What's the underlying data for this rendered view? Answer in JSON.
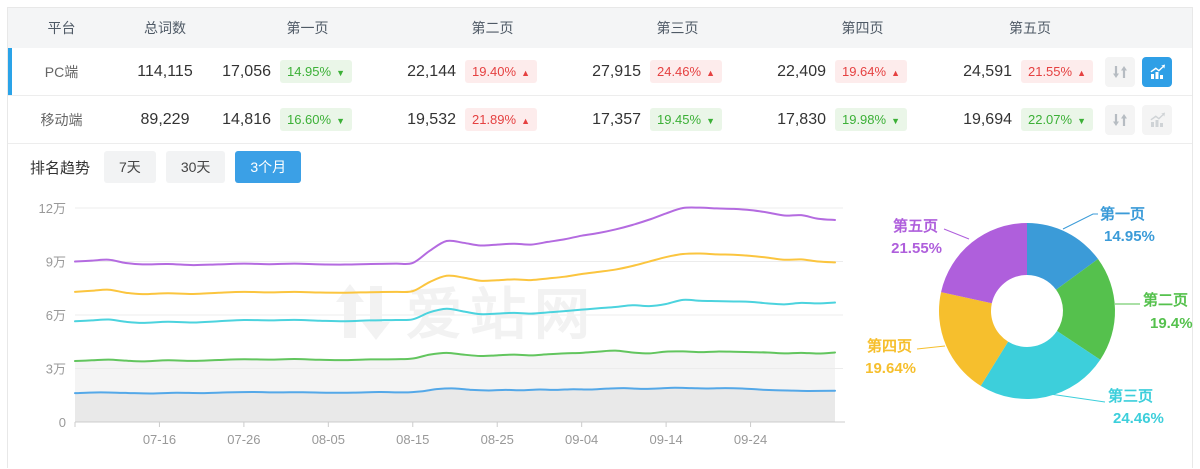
{
  "table": {
    "headers": [
      "平台",
      "总词数",
      "第一页",
      "第二页",
      "第三页",
      "第四页",
      "第五页"
    ],
    "rows": [
      {
        "platform": "PC端",
        "total": "114,115",
        "chart_active": true,
        "pages": [
          {
            "count": "17,056",
            "pct": "14.95%",
            "dir": "down"
          },
          {
            "count": "22,144",
            "pct": "19.40%",
            "dir": "up"
          },
          {
            "count": "27,915",
            "pct": "24.46%",
            "dir": "up"
          },
          {
            "count": "22,409",
            "pct": "19.64%",
            "dir": "up"
          },
          {
            "count": "24,591",
            "pct": "21.55%",
            "dir": "up"
          }
        ]
      },
      {
        "platform": "移动端",
        "total": "89,229",
        "chart_active": false,
        "pages": [
          {
            "count": "14,816",
            "pct": "16.60%",
            "dir": "down"
          },
          {
            "count": "19,532",
            "pct": "21.89%",
            "dir": "up"
          },
          {
            "count": "17,357",
            "pct": "19.45%",
            "dir": "down"
          },
          {
            "count": "17,830",
            "pct": "19.98%",
            "dir": "down"
          },
          {
            "count": "19,694",
            "pct": "22.07%",
            "dir": "down"
          }
        ]
      }
    ]
  },
  "trend": {
    "label": "排名趋势",
    "tabs": [
      {
        "label": "7天",
        "active": false
      },
      {
        "label": "30天",
        "active": false
      },
      {
        "label": "3个月",
        "active": true
      }
    ]
  },
  "watermark": "爱站网",
  "colors": {
    "accent_blue": "#2f9fe6",
    "up_red": "#e54141",
    "down_green": "#3cb037",
    "selected_row_bar": "#2aa3e8"
  },
  "chart_data": [
    {
      "type": "line",
      "title": "排名趋势（3个月）",
      "x_ticks": [
        "07-16",
        "07-26",
        "08-05",
        "08-15",
        "08-25",
        "09-04",
        "09-14",
        "09-24"
      ],
      "x_tick_days": [
        10,
        20,
        30,
        40,
        50,
        60,
        70,
        80
      ],
      "x_range_days": [
        0,
        90
      ],
      "y_ticks": [
        {
          "label": "0",
          "value": 0
        },
        {
          "label": "3万",
          "value": 3
        },
        {
          "label": "6万",
          "value": 6
        },
        {
          "label": "9万",
          "value": 9
        },
        {
          "label": "12万",
          "value": 12
        }
      ],
      "values_unit": "万",
      "ylim": [
        0,
        12.6
      ],
      "grid": true,
      "legend": "none",
      "series": [
        {
          "name": "purple",
          "color": "#b46be0",
          "fill": false,
          "points": [
            [
              0,
              9.0
            ],
            [
              2,
              9.05
            ],
            [
              4,
              9.1
            ],
            [
              6,
              8.92
            ],
            [
              8,
              8.84
            ],
            [
              11,
              8.86
            ],
            [
              14,
              8.8
            ],
            [
              17,
              8.84
            ],
            [
              20,
              8.88
            ],
            [
              23,
              8.85
            ],
            [
              26,
              8.88
            ],
            [
              29,
              8.84
            ],
            [
              32,
              8.83
            ],
            [
              35,
              8.86
            ],
            [
              38,
              8.88
            ],
            [
              40,
              8.92
            ],
            [
              42,
              9.6
            ],
            [
              44,
              10.15
            ],
            [
              46,
              10.05
            ],
            [
              48,
              9.9
            ],
            [
              50,
              9.95
            ],
            [
              52,
              10.0
            ],
            [
              54,
              9.95
            ],
            [
              56,
              10.1
            ],
            [
              58,
              10.25
            ],
            [
              60,
              10.45
            ],
            [
              62,
              10.6
            ],
            [
              64,
              10.8
            ],
            [
              66,
              11.05
            ],
            [
              68,
              11.35
            ],
            [
              70,
              11.7
            ],
            [
              72,
              12.0
            ],
            [
              74,
              12.02
            ],
            [
              76,
              11.98
            ],
            [
              78,
              11.95
            ],
            [
              80,
              11.88
            ],
            [
              82,
              11.75
            ],
            [
              84,
              11.58
            ],
            [
              86,
              11.6
            ],
            [
              88,
              11.4
            ],
            [
              90,
              11.33
            ]
          ]
        },
        {
          "name": "yellow",
          "color": "#fbc53f",
          "fill": false,
          "points": [
            [
              0,
              7.3
            ],
            [
              2,
              7.36
            ],
            [
              4,
              7.42
            ],
            [
              6,
              7.25
            ],
            [
              8,
              7.17
            ],
            [
              11,
              7.22
            ],
            [
              14,
              7.18
            ],
            [
              17,
              7.25
            ],
            [
              20,
              7.3
            ],
            [
              23,
              7.27
            ],
            [
              26,
              7.3
            ],
            [
              29,
              7.26
            ],
            [
              32,
              7.25
            ],
            [
              35,
              7.28
            ],
            [
              38,
              7.3
            ],
            [
              40,
              7.34
            ],
            [
              42,
              7.85
            ],
            [
              44,
              8.2
            ],
            [
              46,
              8.1
            ],
            [
              48,
              7.92
            ],
            [
              50,
              7.95
            ],
            [
              52,
              8.0
            ],
            [
              54,
              7.96
            ],
            [
              56,
              8.05
            ],
            [
              58,
              8.15
            ],
            [
              60,
              8.3
            ],
            [
              62,
              8.42
            ],
            [
              64,
              8.55
            ],
            [
              66,
              8.75
            ],
            [
              68,
              9.0
            ],
            [
              70,
              9.25
            ],
            [
              72,
              9.42
            ],
            [
              74,
              9.45
            ],
            [
              76,
              9.4
            ],
            [
              78,
              9.38
            ],
            [
              80,
              9.32
            ],
            [
              82,
              9.22
            ],
            [
              84,
              9.1
            ],
            [
              86,
              9.12
            ],
            [
              88,
              9.0
            ],
            [
              90,
              8.95
            ]
          ]
        },
        {
          "name": "cyan",
          "color": "#4cd3de",
          "fill": false,
          "points": [
            [
              0,
              5.65
            ],
            [
              2,
              5.7
            ],
            [
              4,
              5.75
            ],
            [
              6,
              5.62
            ],
            [
              8,
              5.56
            ],
            [
              11,
              5.62
            ],
            [
              14,
              5.58
            ],
            [
              17,
              5.65
            ],
            [
              20,
              5.72
            ],
            [
              23,
              5.7
            ],
            [
              26,
              5.73
            ],
            [
              29,
              5.68
            ],
            [
              32,
              5.65
            ],
            [
              35,
              5.7
            ],
            [
              38,
              5.72
            ],
            [
              40,
              5.76
            ],
            [
              42,
              6.15
            ],
            [
              44,
              6.35
            ],
            [
              46,
              6.2
            ],
            [
              48,
              6.05
            ],
            [
              50,
              6.08
            ],
            [
              52,
              6.12
            ],
            [
              54,
              6.08
            ],
            [
              56,
              6.15
            ],
            [
              58,
              6.22
            ],
            [
              60,
              6.3
            ],
            [
              62,
              6.38
            ],
            [
              64,
              6.45
            ],
            [
              66,
              6.55
            ],
            [
              68,
              6.5
            ],
            [
              70,
              6.62
            ],
            [
              72,
              6.85
            ],
            [
              74,
              6.8
            ],
            [
              76,
              6.78
            ],
            [
              78,
              6.76
            ],
            [
              80,
              6.74
            ],
            [
              82,
              6.65
            ],
            [
              84,
              6.6
            ],
            [
              86,
              6.68
            ],
            [
              88,
              6.65
            ],
            [
              90,
              6.7
            ]
          ]
        },
        {
          "name": "green",
          "color": "#62c55e",
          "fill": true,
          "points": [
            [
              0,
              3.42
            ],
            [
              2,
              3.46
            ],
            [
              4,
              3.5
            ],
            [
              6,
              3.44
            ],
            [
              8,
              3.4
            ],
            [
              11,
              3.46
            ],
            [
              14,
              3.43
            ],
            [
              17,
              3.48
            ],
            [
              20,
              3.52
            ],
            [
              23,
              3.5
            ],
            [
              26,
              3.53
            ],
            [
              29,
              3.49
            ],
            [
              32,
              3.47
            ],
            [
              35,
              3.51
            ],
            [
              38,
              3.52
            ],
            [
              40,
              3.56
            ],
            [
              42,
              3.78
            ],
            [
              44,
              3.88
            ],
            [
              46,
              3.78
            ],
            [
              48,
              3.7
            ],
            [
              50,
              3.74
            ],
            [
              52,
              3.78
            ],
            [
              54,
              3.74
            ],
            [
              56,
              3.8
            ],
            [
              58,
              3.85
            ],
            [
              60,
              3.88
            ],
            [
              62,
              3.95
            ],
            [
              64,
              4.0
            ],
            [
              66,
              3.9
            ],
            [
              68,
              3.85
            ],
            [
              70,
              3.95
            ],
            [
              72,
              3.96
            ],
            [
              74,
              3.92
            ],
            [
              76,
              3.95
            ],
            [
              78,
              3.94
            ],
            [
              80,
              3.92
            ],
            [
              82,
              3.9
            ],
            [
              84,
              3.85
            ],
            [
              86,
              3.88
            ],
            [
              88,
              3.84
            ],
            [
              90,
              3.9
            ]
          ]
        },
        {
          "name": "blue",
          "color": "#54a8e8",
          "fill": true,
          "points": [
            [
              0,
              1.62
            ],
            [
              3,
              1.66
            ],
            [
              6,
              1.63
            ],
            [
              9,
              1.6
            ],
            [
              12,
              1.64
            ],
            [
              15,
              1.62
            ],
            [
              18,
              1.66
            ],
            [
              21,
              1.68
            ],
            [
              24,
              1.66
            ],
            [
              27,
              1.67
            ],
            [
              30,
              1.64
            ],
            [
              33,
              1.65
            ],
            [
              36,
              1.68
            ],
            [
              39,
              1.66
            ],
            [
              41,
              1.72
            ],
            [
              43,
              1.85
            ],
            [
              45,
              1.88
            ],
            [
              47,
              1.8
            ],
            [
              49,
              1.77
            ],
            [
              51,
              1.8
            ],
            [
              53,
              1.78
            ],
            [
              55,
              1.82
            ],
            [
              57,
              1.8
            ],
            [
              59,
              1.84
            ],
            [
              61,
              1.82
            ],
            [
              63,
              1.87
            ],
            [
              65,
              1.9
            ],
            [
              67,
              1.86
            ],
            [
              69,
              1.88
            ],
            [
              71,
              1.92
            ],
            [
              73,
              1.9
            ],
            [
              75,
              1.88
            ],
            [
              77,
              1.9
            ],
            [
              79,
              1.88
            ],
            [
              81,
              1.82
            ],
            [
              83,
              1.78
            ],
            [
              85,
              1.76
            ],
            [
              87,
              1.74
            ],
            [
              90,
              1.75
            ]
          ]
        }
      ]
    },
    {
      "type": "pie",
      "donut": true,
      "start_angle": "top",
      "direction": "clockwise",
      "labels": [
        "第一页",
        "第二页",
        "第三页",
        "第四页",
        "第五页"
      ],
      "values": [
        14.95,
        19.4,
        24.46,
        19.64,
        21.55
      ],
      "display_pcts": [
        "14.95%",
        "19.4%",
        "24.46%",
        "19.64%",
        "21.55%"
      ],
      "colors": [
        "#3b9bd8",
        "#55c14d",
        "#3dcfdb",
        "#f6bf2d",
        "#af5fdc"
      ]
    }
  ]
}
